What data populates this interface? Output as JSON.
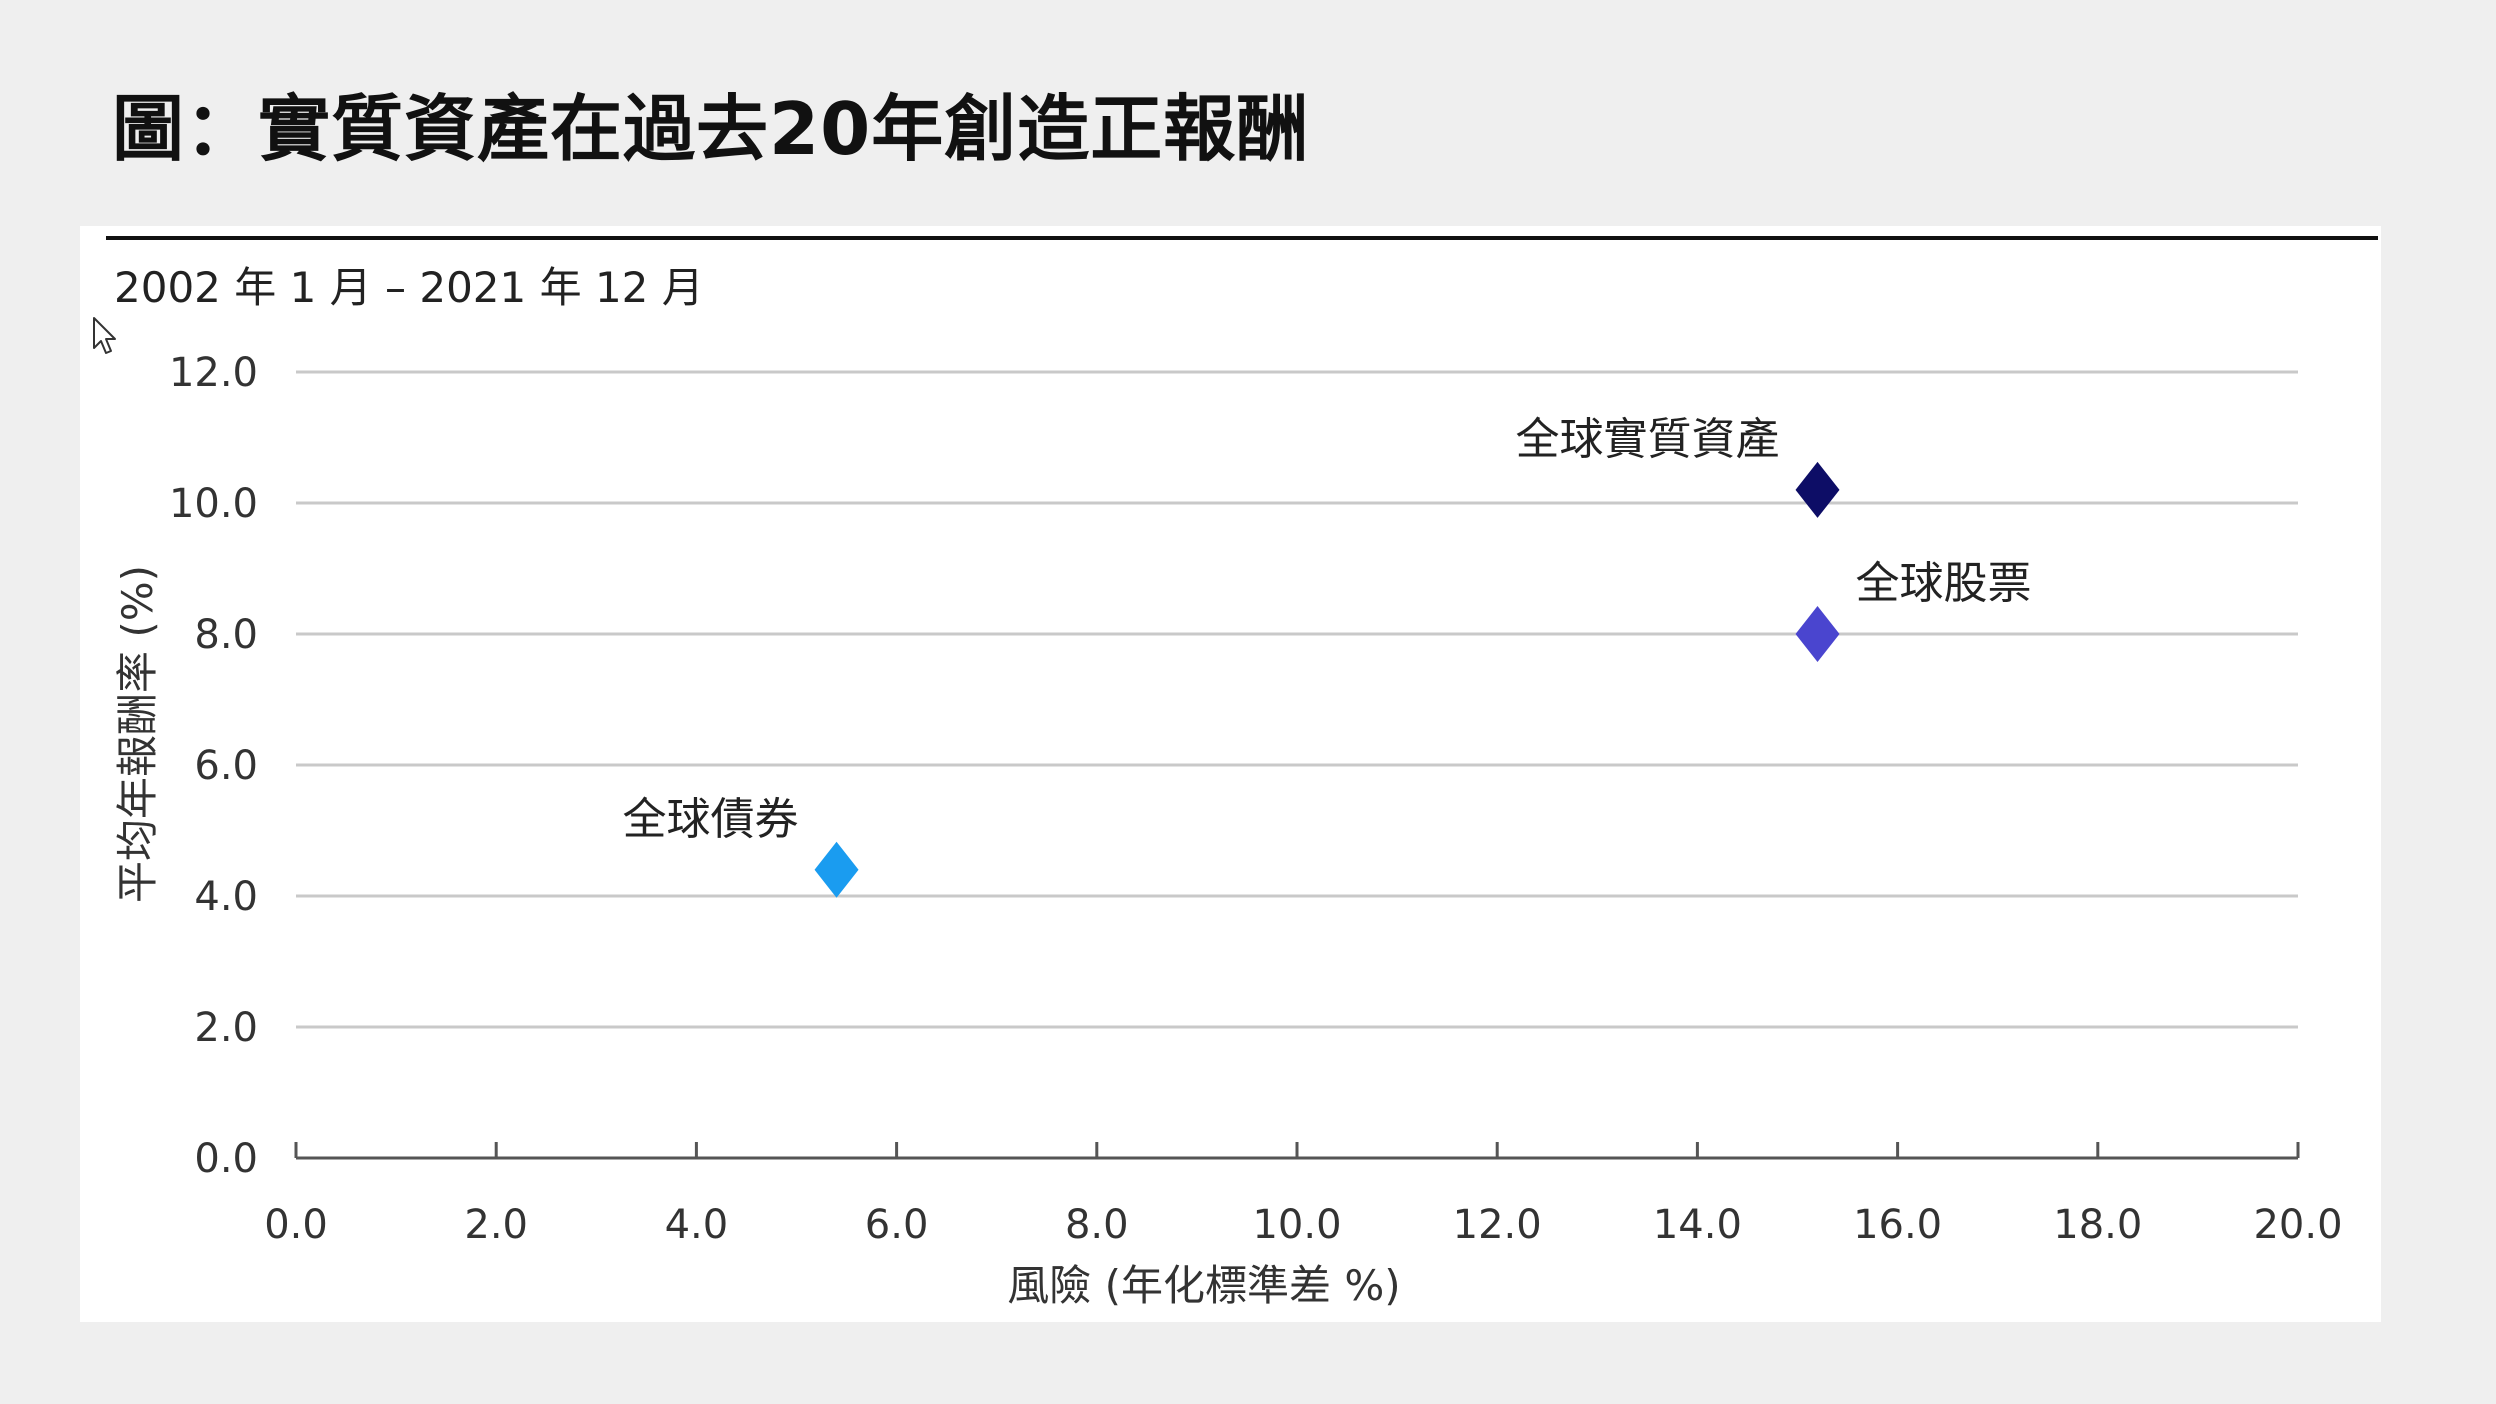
{
  "title": "圖：實質資產在過去20年創造正報酬",
  "subtitle": "2002 年 1 月 – 2021 年 12 月",
  "cursor_icon": "mouse-pointer-icon",
  "chart_data": {
    "type": "scatter",
    "xlabel": "風險 (年化標準差 %)",
    "ylabel": "平均年報酬率 (%)",
    "xlim": [
      0,
      20
    ],
    "ylim": [
      0,
      12
    ],
    "xticks": [
      "0.0",
      "2.0",
      "4.0",
      "6.0",
      "8.0",
      "10.0",
      "12.0",
      "14.0",
      "16.0",
      "18.0",
      "20.0"
    ],
    "yticks": [
      "0.0",
      "2.0",
      "4.0",
      "6.0",
      "8.0",
      "10.0",
      "12.0"
    ],
    "grid": "horizontal",
    "marker": "diamond",
    "points": [
      {
        "label": "全球債券",
        "x": 5.4,
        "y": 4.4,
        "color": "#1a9cf0",
        "label_position": "top-left"
      },
      {
        "label": "全球股票",
        "x": 15.2,
        "y": 8.0,
        "color": "#4a45cf",
        "label_position": "top-right"
      },
      {
        "label": "全球實質資產",
        "x": 15.2,
        "y": 10.2,
        "color": "#0d0d66",
        "label_position": "top-left"
      }
    ]
  }
}
